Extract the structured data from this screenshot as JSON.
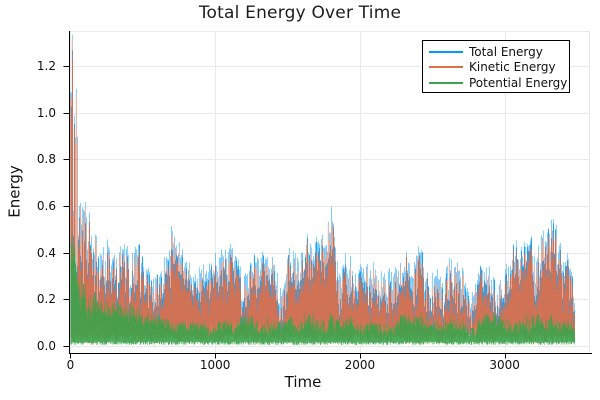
{
  "chart_data": {
    "type": "line",
    "title": "Total Energy Over Time",
    "xlabel": "Time",
    "ylabel": "Energy",
    "xlim": [
      -10,
      3590
    ],
    "ylim": [
      -0.03,
      1.35
    ],
    "x_data_range": [
      0,
      3484
    ],
    "x_ticks": {
      "values": [
        0,
        1000,
        2000,
        3000
      ],
      "labels": [
        "0",
        "1000",
        "2000",
        "3000"
      ]
    },
    "y_ticks": {
      "values": [
        0.0,
        0.2,
        0.4,
        0.6,
        0.8,
        1.0,
        1.2
      ],
      "labels": [
        "0.0",
        "0.2",
        "0.4",
        "0.6",
        "0.8",
        "1.0",
        "1.2"
      ]
    },
    "grid": true,
    "grid_color": "#e9e9e9",
    "axis_color": "#000000",
    "background_color": "#ffffff",
    "legend": {
      "position": "top-right",
      "border_color": "#000000",
      "background": "#ffffff"
    },
    "series": [
      {
        "name": "Total Energy",
        "color": "#009af9",
        "style": "dense-noisy-line",
        "peak_envelope": [
          [
            0,
            1.1
          ],
          [
            10,
            1.34
          ],
          [
            25,
            1.05
          ],
          [
            40,
            1.12
          ],
          [
            60,
            0.96
          ],
          [
            80,
            0.92
          ],
          [
            100,
            0.86
          ],
          [
            130,
            0.8
          ],
          [
            160,
            0.74
          ],
          [
            200,
            0.68
          ],
          [
            240,
            0.6
          ],
          [
            280,
            0.5
          ],
          [
            320,
            0.52
          ],
          [
            360,
            0.55
          ],
          [
            420,
            0.56
          ],
          [
            470,
            0.52
          ],
          [
            520,
            0.46
          ],
          [
            560,
            0.42
          ],
          [
            600,
            0.46
          ],
          [
            640,
            0.42
          ],
          [
            700,
            0.56
          ],
          [
            740,
            0.48
          ],
          [
            800,
            0.4
          ],
          [
            860,
            0.34
          ],
          [
            920,
            0.36
          ],
          [
            980,
            0.42
          ],
          [
            1040,
            0.44
          ],
          [
            1100,
            0.46
          ],
          [
            1160,
            0.5
          ],
          [
            1220,
            0.5
          ],
          [
            1280,
            0.46
          ],
          [
            1340,
            0.4
          ],
          [
            1400,
            0.38
          ],
          [
            1460,
            0.42
          ],
          [
            1520,
            0.42
          ],
          [
            1580,
            0.46
          ],
          [
            1640,
            0.48
          ],
          [
            1700,
            0.52
          ],
          [
            1760,
            0.54
          ],
          [
            1820,
            0.63
          ],
          [
            1860,
            0.5
          ],
          [
            1920,
            0.46
          ],
          [
            1980,
            0.44
          ],
          [
            2040,
            0.46
          ],
          [
            2100,
            0.46
          ],
          [
            2160,
            0.42
          ],
          [
            2220,
            0.44
          ],
          [
            2280,
            0.46
          ],
          [
            2340,
            0.5
          ],
          [
            2400,
            0.52
          ],
          [
            2460,
            0.5
          ],
          [
            2520,
            0.46
          ],
          [
            2580,
            0.46
          ],
          [
            2640,
            0.5
          ],
          [
            2700,
            0.52
          ],
          [
            2760,
            0.3
          ],
          [
            2800,
            0.36
          ],
          [
            2860,
            0.46
          ],
          [
            2920,
            0.42
          ],
          [
            2980,
            0.42
          ],
          [
            3040,
            0.44
          ],
          [
            3100,
            0.46
          ],
          [
            3160,
            0.48
          ],
          [
            3220,
            0.52
          ],
          [
            3280,
            0.56
          ],
          [
            3340,
            0.54
          ],
          [
            3400,
            0.56
          ],
          [
            3450,
            0.5
          ],
          [
            3484,
            0.36
          ]
        ],
        "typical_min": 0.05
      },
      {
        "name": "Kinetic Energy",
        "color": "#e26e47",
        "style": "dense-noisy-line",
        "peak_envelope": [
          [
            0,
            1.05
          ],
          [
            10,
            1.29
          ],
          [
            25,
            1.0
          ],
          [
            40,
            1.07
          ],
          [
            60,
            0.91
          ],
          [
            80,
            0.87
          ],
          [
            100,
            0.81
          ],
          [
            130,
            0.75
          ],
          [
            160,
            0.69
          ],
          [
            200,
            0.63
          ],
          [
            240,
            0.55
          ],
          [
            280,
            0.45
          ],
          [
            320,
            0.47
          ],
          [
            360,
            0.5
          ],
          [
            420,
            0.51
          ],
          [
            470,
            0.47
          ],
          [
            520,
            0.41
          ],
          [
            560,
            0.37
          ],
          [
            600,
            0.41
          ],
          [
            640,
            0.37
          ],
          [
            700,
            0.51
          ],
          [
            740,
            0.43
          ],
          [
            800,
            0.35
          ],
          [
            860,
            0.29
          ],
          [
            920,
            0.31
          ],
          [
            980,
            0.37
          ],
          [
            1040,
            0.39
          ],
          [
            1100,
            0.41
          ],
          [
            1160,
            0.45
          ],
          [
            1220,
            0.45
          ],
          [
            1280,
            0.41
          ],
          [
            1340,
            0.35
          ],
          [
            1400,
            0.33
          ],
          [
            1460,
            0.37
          ],
          [
            1520,
            0.37
          ],
          [
            1580,
            0.41
          ],
          [
            1640,
            0.43
          ],
          [
            1700,
            0.47
          ],
          [
            1760,
            0.49
          ],
          [
            1820,
            0.58
          ],
          [
            1860,
            0.45
          ],
          [
            1920,
            0.41
          ],
          [
            1980,
            0.39
          ],
          [
            2040,
            0.41
          ],
          [
            2100,
            0.41
          ],
          [
            2160,
            0.37
          ],
          [
            2220,
            0.39
          ],
          [
            2280,
            0.41
          ],
          [
            2340,
            0.45
          ],
          [
            2400,
            0.47
          ],
          [
            2460,
            0.45
          ],
          [
            2520,
            0.41
          ],
          [
            2580,
            0.41
          ],
          [
            2640,
            0.45
          ],
          [
            2700,
            0.47
          ],
          [
            2760,
            0.25
          ],
          [
            2800,
            0.31
          ],
          [
            2860,
            0.41
          ],
          [
            2920,
            0.37
          ],
          [
            2980,
            0.37
          ],
          [
            3040,
            0.39
          ],
          [
            3100,
            0.41
          ],
          [
            3160,
            0.43
          ],
          [
            3220,
            0.47
          ],
          [
            3280,
            0.51
          ],
          [
            3340,
            0.49
          ],
          [
            3400,
            0.51
          ],
          [
            3450,
            0.45
          ],
          [
            3484,
            0.31
          ]
        ],
        "typical_min": 0.02
      },
      {
        "name": "Potential Energy",
        "color": "#3da44d",
        "style": "dense-noisy-line",
        "peak_envelope": [
          [
            0,
            0.55
          ],
          [
            15,
            0.68
          ],
          [
            30,
            0.5
          ],
          [
            60,
            0.42
          ],
          [
            100,
            0.34
          ],
          [
            150,
            0.28
          ],
          [
            200,
            0.24
          ],
          [
            260,
            0.2
          ],
          [
            320,
            0.18
          ],
          [
            400,
            0.17
          ],
          [
            480,
            0.16
          ],
          [
            560,
            0.14
          ],
          [
            640,
            0.12
          ],
          [
            720,
            0.11
          ],
          [
            800,
            0.11
          ],
          [
            900,
            0.1
          ],
          [
            1000,
            0.11
          ],
          [
            1100,
            0.13
          ],
          [
            1200,
            0.14
          ],
          [
            1300,
            0.13
          ],
          [
            1400,
            0.12
          ],
          [
            1500,
            0.12
          ],
          [
            1600,
            0.13
          ],
          [
            1700,
            0.14
          ],
          [
            1800,
            0.16
          ],
          [
            1900,
            0.13
          ],
          [
            2000,
            0.12
          ],
          [
            2100,
            0.13
          ],
          [
            2200,
            0.13
          ],
          [
            2300,
            0.14
          ],
          [
            2400,
            0.14
          ],
          [
            2500,
            0.13
          ],
          [
            2600,
            0.13
          ],
          [
            2700,
            0.14
          ],
          [
            2760,
            0.1
          ],
          [
            2850,
            0.13
          ],
          [
            2950,
            0.14
          ],
          [
            3050,
            0.14
          ],
          [
            3150,
            0.15
          ],
          [
            3250,
            0.16
          ],
          [
            3350,
            0.15
          ],
          [
            3450,
            0.14
          ],
          [
            3484,
            0.12
          ]
        ],
        "typical_min": 0.0
      }
    ]
  }
}
